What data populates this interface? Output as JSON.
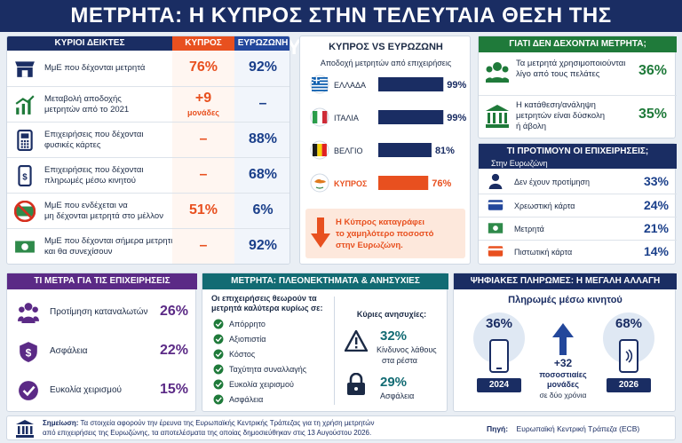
{
  "title": "ΜΕΤΡΗΤΑ: Η ΚΥΠΡΟΣ ΣΤΗΝ ΤΕΛΕΥΤΑΙΑ ΘΕΣΗ ΤΗΣ ΕΥΡΩΖΩΝΗΣ",
  "indicators": {
    "h_label": "ΚΥΡΙΟΙ ΔΕΙΚΤΕΣ",
    "h_cy": "ΚΥΠΡΟΣ",
    "h_ez": "ΕΥΡΩΖΩΝΗ",
    "rows": [
      {
        "l1": "ΜμΕ που δέχονται μετρητά",
        "l2": "",
        "cy": "76%",
        "cy2": "",
        "ez": "92%",
        "icon": "shop-icon"
      },
      {
        "l1": "Μεταβολή αποδοχής",
        "l2": "μετρητών από το 2021",
        "cy": "+9",
        "cy2": "μονάδες",
        "ez": "–",
        "icon": "growth-chart-icon"
      },
      {
        "l1": "Επιχειρήσεις που δέχονται",
        "l2": "φυσικές κάρτες",
        "cy": "–",
        "cy2": "",
        "ez": "88%",
        "icon": "card-terminal-icon"
      },
      {
        "l1": "Επιχειρήσεις που δέχονται",
        "l2": "πληρωμές μέσω κινητού",
        "cy": "–",
        "cy2": "",
        "ez": "68%",
        "icon": "phone-payment-icon"
      },
      {
        "l1": "ΜμΕ που ενδέχεται να",
        "l2": "μη δέχονται μετρητά στο μέλλον",
        "cy": "51%",
        "cy2": "",
        "ez": "6%",
        "icon": "no-cash-icon"
      },
      {
        "l1": "ΜμΕ που δέχονται σήμερα μετρητά",
        "l2": "και θα συνεχίσουν",
        "cy": "–",
        "cy2": "",
        "ez": "92%",
        "icon": "cash-icon"
      }
    ]
  },
  "versus": {
    "title": "ΚΥΠΡΟΣ VS ΕΥΡΩΖΩΝΗ",
    "subtitle": "Αποδοχή μετρητών από επιχειρήσεις",
    "note": "Η Κύπρος καταγράφει το χαμηλότερο ποσοστό στην Ευρωζώνη.",
    "note_lines": [
      "Η Κύπρος καταγράφει",
      "το χαμηλότερο ποσοστό",
      "στην Ευρωζώνη."
    ]
  },
  "chart_data": {
    "type": "bar",
    "categories": [
      "ΕΛΛΑΔΑ",
      "ΙΤΑΛΙΑ",
      "ΒΕΛΓΙΟ",
      "ΚΥΠΡΟΣ"
    ],
    "values": [
      99,
      99,
      81,
      76
    ],
    "labels": [
      "99%",
      "99%",
      "81%",
      "76%"
    ],
    "colors": [
      "#1a2d63",
      "#1a2d63",
      "#1a2d63",
      "#e8501f"
    ],
    "xlim": [
      0,
      100
    ]
  },
  "reasons": {
    "title": "ΓΙΑΤΙ ΔΕΝ ΔΕΧΟΝΤΑΙ ΜΕΤΡΗΤΑ;",
    "items": [
      {
        "l1": "Τα μετρητά χρησιμοποιούνται",
        "l2": "λίγο από τους πελάτες",
        "l3": "",
        "v": "36%",
        "icon": "customers-icon"
      },
      {
        "l1": "Η κατάθεση/ανάληψη",
        "l2": "μετρητών είναι δύσκολη",
        "l3": "ή άβολη",
        "v": "35%",
        "icon": "bank-icon"
      }
    ]
  },
  "prefs": {
    "title": "ΤΙ ΠΡΟΤΙΜΟΥΝ ΟΙ ΕΠΙΧΕΙΡΗΣΕΙΣ;",
    "subtitle": "Στην Ευρωζώνη",
    "items": [
      {
        "l": "Δεν έχουν προτίμηση",
        "v": "33%",
        "icon": "person-icon"
      },
      {
        "l": "Χρεωστική κάρτα",
        "v": "24%",
        "icon": "debit-card-icon"
      },
      {
        "l": "Μετρητά",
        "v": "21%",
        "icon": "banknote-icon"
      },
      {
        "l": "Πιστωτική κάρτα",
        "v": "14%",
        "icon": "credit-card-icon"
      }
    ]
  },
  "measures": {
    "title": "ΤΙ ΜΕΤΡΑ ΓΙΑ ΤΙΣ ΕΠΙΧΕΙΡΗΣΕΙΣ",
    "items": [
      {
        "l": "Προτίμηση καταναλωτών",
        "v": "26%",
        "icon": "consumers-icon"
      },
      {
        "l": "Ασφάλεια",
        "v": "22%",
        "icon": "shield-dollar-icon"
      },
      {
        "l": "Ευκολία χειρισμού",
        "v": "15%",
        "icon": "check-circle-icon"
      }
    ]
  },
  "pros": {
    "title": "ΜΕΤΡΗΤΑ: ΠΛΕΟΝΕΚΤΗΜΑΤΑ & ΑΝΗΣΥΧΙΕΣ",
    "intro1": "Οι επιχειρήσεις θεωρούν τα",
    "intro2": "μετρητά καλύτερα κυρίως σε:",
    "items": [
      "Απόρρητο",
      "Αξιοπιστία",
      "Κόστος",
      "Ταχύτητα συναλλαγής",
      "Ευκολία χειρισμού",
      "Ασφάλεια"
    ],
    "concerns_title": "Κύριες ανησυχίες:",
    "concerns": [
      {
        "v": "32%",
        "l1": "Κίνδυνος λάθους",
        "l2": "στα ρέστα",
        "icon": "warning-icon"
      },
      {
        "v": "29%",
        "l1": "Ασφάλεια",
        "l2": "",
        "icon": "padlock-icon"
      }
    ]
  },
  "digital": {
    "title": "ΨΗΦΙΑΚΕΣ ΠΛΗΡΩΜΕΣ: Η ΜΕΓΑΛΗ ΑΛΛΑΓΗ",
    "subtitle": "Πληρωμές μέσω κινητού",
    "v2024": "36%",
    "y2024": "2024",
    "v2026": "68%",
    "y2026": "2026",
    "change": "+32",
    "change1": "ποσοστιαίες",
    "change2": "μονάδες",
    "change3": "σε δύο χρόνια"
  },
  "footer": {
    "note_label": "Σημείωση:",
    "note": "Τα στοιχεία αφορούν την έρευνα της Ευρωπαϊκής Κεντρικής Τράπεζας για τη χρήση μετρητών",
    "note2": "από επιχειρήσεις της Ευρωζώνης, τα αποτελέσματα της οποίας δημοσιεύθηκαν στις 13 Αυγούστου 2026.",
    "source_label": "Πηγή:",
    "source": "Ευρωπαϊκή Κεντρική Τράπεζα (ECB)"
  },
  "palette": {
    "navy": "#1a2d63",
    "orange": "#e8501f",
    "green": "#1f7a3a",
    "purple": "#5b2a86",
    "teal": "#126b73"
  }
}
